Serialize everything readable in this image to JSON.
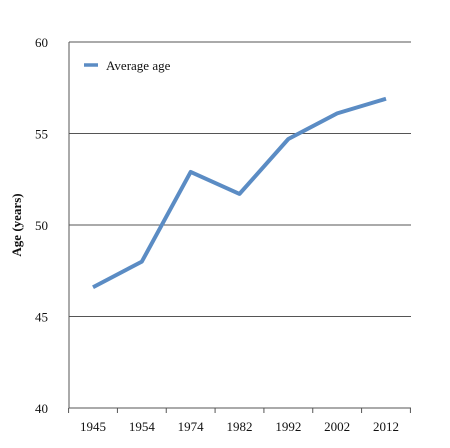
{
  "chart_data": {
    "type": "line",
    "categories": [
      "1945",
      "1954",
      "1974",
      "1982",
      "1992",
      "2002",
      "2012"
    ],
    "series": [
      {
        "name": "Average age",
        "values": [
          46.6,
          48.0,
          52.9,
          51.7,
          54.7,
          56.1,
          56.9
        ],
        "color": "#5b8cc4"
      }
    ],
    "ylabel": "Age (years)",
    "ylim": [
      40,
      60
    ],
    "yticks": [
      40,
      45,
      50,
      55,
      60
    ],
    "grid": true,
    "legend": "top-left"
  }
}
